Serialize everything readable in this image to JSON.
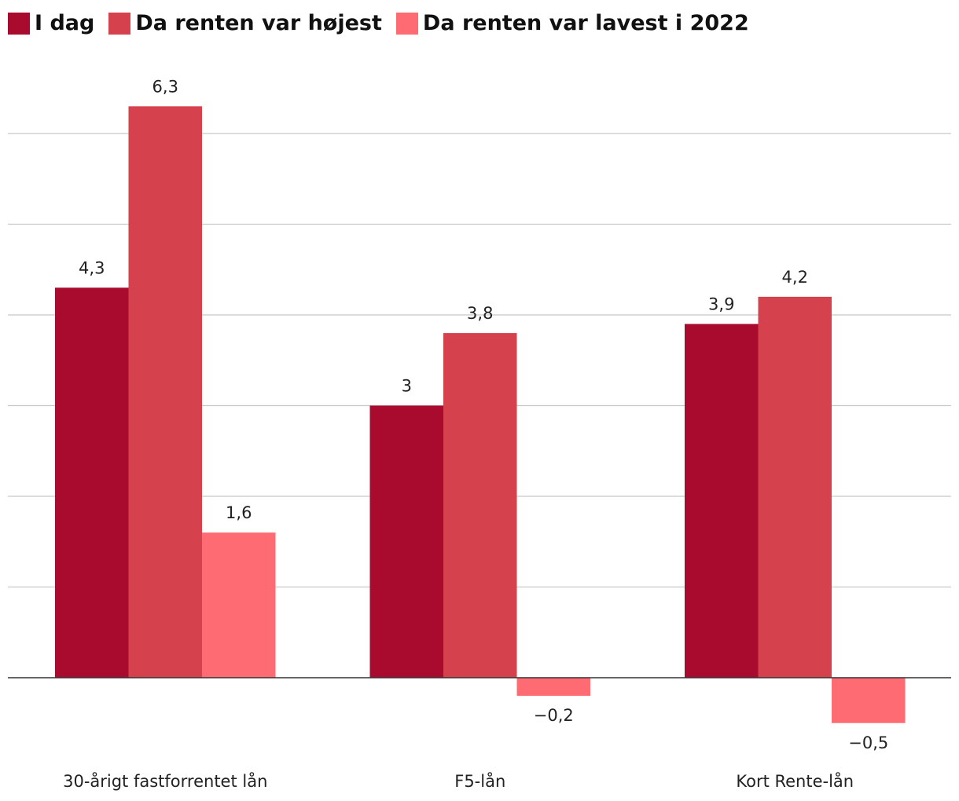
{
  "chart_data": {
    "type": "bar",
    "title": "",
    "xlabel": "",
    "ylabel": "",
    "ylim": [
      -1.0,
      6.5
    ],
    "grid": true,
    "gridlines": [
      1,
      2,
      3,
      4,
      5,
      6
    ],
    "legend_position": "top-left",
    "categories": [
      "30-årigt fastforrentet lån",
      "F5-lån",
      "Kort Rente-lån"
    ],
    "series": [
      {
        "name": "I dag",
        "color": "#a80b2e",
        "values": [
          4.3,
          3,
          3.9
        ],
        "value_labels": [
          "4,3",
          "3",
          "3,9"
        ]
      },
      {
        "name": "Da renten var højest",
        "color": "#d5414d",
        "values": [
          6.3,
          3.8,
          4.2
        ],
        "value_labels": [
          "6,3",
          "3,8",
          "4,2"
        ]
      },
      {
        "name": "Da renten var lavest i 2022",
        "color": "#ff6b73",
        "values": [
          1.6,
          -0.2,
          -0.5
        ],
        "value_labels": [
          "1,6",
          "−0,2",
          "−0,5"
        ]
      }
    ]
  }
}
